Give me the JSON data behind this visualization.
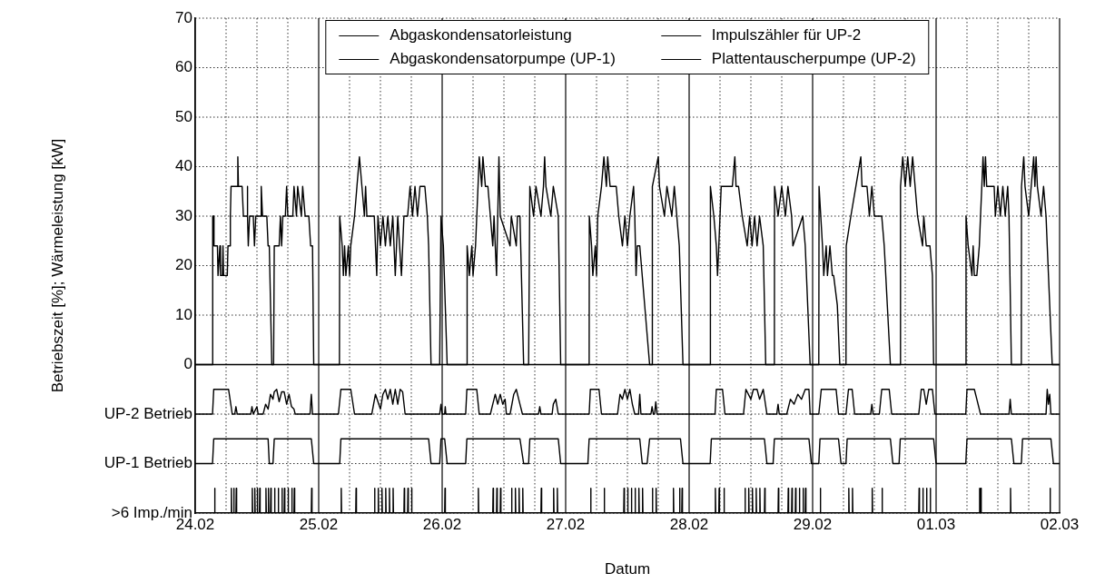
{
  "chart_data": {
    "type": "line",
    "xlabel": "Datum",
    "ylabel": "Betriebszeit [%]; Wärmeleistung [kW]",
    "xlim": [
      "--02-24",
      "--03-02"
    ],
    "xticks": [
      {
        "value": "--02-24",
        "label": "24.02"
      },
      {
        "value": "--02-24T06:00",
        "label": null
      },
      {
        "value": "--02-24T12:00",
        "label": null
      },
      {
        "value": "--02-24T18:00",
        "label": null
      },
      {
        "value": "--02-25",
        "label": "25.02"
      },
      {
        "value": "--02-25T06:00",
        "label": null
      },
      {
        "value": "--02-25T12:00",
        "label": null
      },
      {
        "value": "--02-25T18:00",
        "label": null
      },
      {
        "value": "--02-26",
        "label": "26.02"
      },
      {
        "value": "--02-26T06:00",
        "label": null
      },
      {
        "value": "--02-26T12:00",
        "label": null
      },
      {
        "value": "--02-26T18:00",
        "label": null
      },
      {
        "value": "--02-27",
        "label": "27.02"
      },
      {
        "value": "--02-27T06:00",
        "label": null
      },
      {
        "value": "--02-27T12:00",
        "label": null
      },
      {
        "value": "--02-27T18:00",
        "label": null
      },
      {
        "value": "--02-28",
        "label": "28.02"
      },
      {
        "value": "--02-28T06:00",
        "label": null
      },
      {
        "value": "--02-28T12:00",
        "label": null
      },
      {
        "value": "--02-28T18:00",
        "label": null
      },
      {
        "value": "--02-29",
        "label": "29.02"
      },
      {
        "value": "--02-29T06:00",
        "label": null
      },
      {
        "value": "--02-29T12:00",
        "label": null
      },
      {
        "value": "--02-29T18:00",
        "label": null
      },
      {
        "value": "--03-01",
        "label": "01.03"
      },
      {
        "value": "--03-01T06:00",
        "label": null
      },
      {
        "value": "--03-01T12:00",
        "label": null
      },
      {
        "value": "--03-01T18:00",
        "label": null
      },
      {
        "value": "--03-02",
        "label": "02.03"
      }
    ],
    "ylim": [
      -30,
      70
    ],
    "yticks": [
      {
        "value": -30,
        "label": ">6 Imp./min"
      },
      {
        "value": -20,
        "label": "UP-1 Betrieb"
      },
      {
        "value": -10,
        "label": "UP-2 Betrieb"
      },
      0,
      10,
      20,
      30,
      40,
      50,
      60,
      70
    ],
    "grid": true,
    "legend": "top",
    "marker": "none",
    "line_style": "solid",
    "series": [
      {
        "name": "Abgaskondensatorleistung",
        "color": "#000000",
        "x": [
          "--02-24T00:00",
          "--02-24T03:22",
          "--02-24T03:24",
          "--02-24T03:36",
          "--02-24T03:39",
          "--02-24T04:19",
          "--02-24T04:26",
          "--02-24T04:48",
          "--02-24T04:55",
          "--02-24T05:17",
          "--02-24T05:24",
          "--02-24T05:31",
          "--02-24T06:14",
          "--02-24T06:22",
          "--02-24T06:43",
          "--02-24T06:50",
          "--02-24T06:58",
          "--02-24T08:10",
          "--02-24T08:17",
          "--02-24T08:24",
          "--02-24T09:07",
          "--02-24T09:22",
          "--02-24T10:05",
          "--02-24T10:08",
          "--02-24T10:12",
          "--02-24T10:19",
          "--02-24T10:34",
          "--02-24T11:17",
          "--02-24T11:31",
          "--02-24T11:46",
          "--02-24T12:43",
          "--02-24T12:50",
          "--02-24T13:05",
          "--02-24T13:55",
          "--02-24T14:10",
          "--02-24T14:24",
          "--02-24T14:53",
          "--02-24T15:14",
          "--02-24T15:22",
          "--02-24T16:19",
          "--02-24T16:34",
          "--02-24T16:48",
          "--02-24T17:02",
          "--02-24T17:31",
          "--02-24T17:46",
          "--02-24T18:00",
          "--02-24T18:58",
          "--02-24T19:12",
          "--02-24T19:41",
          "--02-24T19:55",
          "--02-24T20:38",
          "--02-24T20:53",
          "--02-24T21:22",
          "--02-24T22:05",
          "--02-24T22:26",
          "--02-24T22:48",
          "--02-24T23:02",
          "--02-25T04:02",
          "--02-25T04:05",
          "--02-25T04:34",
          "--02-25T04:48",
          "--02-25T05:02",
          "--02-25T05:17",
          "--02-25T05:46",
          "--02-25T06:00",
          "--02-25T06:14",
          "--02-25T06:58",
          "--02-25T07:26",
          "--02-25T07:55",
          "--02-25T08:24",
          "--02-25T08:53",
          "--02-25T09:07",
          "--02-25T09:22",
          "--02-25T10:48",
          "--02-25T11:02",
          "--02-25T11:17",
          "--02-25T11:31",
          "--02-25T12:00",
          "--02-25T12:29",
          "--02-25T12:58",
          "--02-25T13:26",
          "--02-25T13:55",
          "--02-25T14:24",
          "--02-25T14:53",
          "--02-25T15:22",
          "--02-25T16:05",
          "--02-25T16:34",
          "--02-25T17:17",
          "--02-25T17:46",
          "--02-25T18:14",
          "--02-25T18:43",
          "--02-25T19:12",
          "--02-25T19:41",
          "--02-25T20:38",
          "--02-25T21:07",
          "--02-25T21:22",
          "--02-25T21:50",
          "--02-25T23:31",
          "--02-25T23:46",
          "--02-26T00:14",
          "--02-26T00:58",
          "--02-26T04:48",
          "--02-26T04:51",
          "--02-26T05:17",
          "--02-26T05:46",
          "--02-26T06:00",
          "--02-26T06:29",
          "--02-26T06:58",
          "--02-26T07:12",
          "--02-26T07:41",
          "--02-26T07:55",
          "--02-26T08:24",
          "--02-26T08:53",
          "--02-26T09:22",
          "--02-26T09:50",
          "--02-26T10:05",
          "--02-26T10:19",
          "--02-26T10:34",
          "--02-26T10:48",
          "--02-26T11:02",
          "--02-26T11:17",
          "--02-26T13:12",
          "--02-26T13:26",
          "--02-26T14:24",
          "--02-26T14:38",
          "--02-26T15:07",
          "--02-26T15:50",
          "--02-26T16:48",
          "--02-26T17:02",
          "--02-26T17:46",
          "--02-26T18:14",
          "--02-26T19:12",
          "--02-26T19:41",
          "--02-26T19:55",
          "--02-26T20:10",
          "--02-26T21:07",
          "--02-26T21:36",
          "--02-26T22:34",
          "--02-26T23:02",
          "--02-27T04:34",
          "--02-27T04:36",
          "--02-27T05:02",
          "--02-27T05:17",
          "--02-27T05:46",
          "--02-27T06:00",
          "--02-27T06:14",
          "--02-27T06:58",
          "--02-27T07:26",
          "--02-27T07:55",
          "--02-27T08:10",
          "--02-27T08:38",
          "--02-27T09:50",
          "--02-27T10:19",
          "--02-27T11:02",
          "--02-27T11:31",
          "--02-27T12:00",
          "--02-27T12:29",
          "--02-27T13:12",
          "--02-27T13:26",
          "--02-27T13:41",
          "--02-27T13:55",
          "--02-27T14:24",
          "--02-27T16:19",
          "--02-27T16:48",
          "--02-27T16:51",
          "--02-27T18:00",
          "--02-27T18:14",
          "--02-27T19:12",
          "--02-27T19:41",
          "--02-27T20:38",
          "--02-27T21:07",
          "--02-27T21:36",
          "--02-27T22:05",
          "--02-27T22:48",
          "--02-28T04:05",
          "--02-28T04:08",
          "--02-28T04:48",
          "--02-28T05:17",
          "--02-28T05:31",
          "--02-28T05:46",
          "--02-28T06:00",
          "--02-28T06:14",
          "--02-28T08:24",
          "--02-28T08:53",
          "--02-28T09:07",
          "--02-28T09:36",
          "--02-28T10:19",
          "--02-28T11:17",
          "--02-28T11:46",
          "--02-28T12:14",
          "--02-28T12:43",
          "--02-28T13:12",
          "--02-28T13:41",
          "--02-28T14:24",
          "--02-28T14:53",
          "--02-28T16:34",
          "--02-28T16:36",
          "--02-28T17:17",
          "--02-28T18:00",
          "--02-28T18:43",
          "--02-28T19:12",
          "--02-28T19:55",
          "--02-28T20:10",
          "--02-28T22:05",
          "--02-28T22:34",
          "--02-28T23:31",
          "--02-29T01:12",
          "--02-29T01:15",
          "--02-29T01:55",
          "--02-29T02:10",
          "--02-29T02:38",
          "--02-29T02:53",
          "--02-29T03:22",
          "--02-29T03:50",
          "--02-29T04:05",
          "--02-29T04:48",
          "--02-29T05:17",
          "--02-29T06:29",
          "--02-29T06:32",
          "--02-29T07:26",
          "--02-29T08:24",
          "--02-29T09:22",
          "--02-29T09:36",
          "--02-29T10:34",
          "--02-29T11:02",
          "--02-29T11:31",
          "--02-29T12:00",
          "--02-29T12:43",
          "--02-29T13:26",
          "--02-29T13:55",
          "--02-29T15:07",
          "--02-29T17:02",
          "--02-29T17:05",
          "--02-29T17:31",
          "--02-29T18:00",
          "--02-29T18:29",
          "--02-29T18:58",
          "--02-29T19:26",
          "--02-29T19:55",
          "--02-29T20:24",
          "--02-29T21:22",
          "--02-29T21:36",
          "--02-29T22:05",
          "--02-29T22:48",
          "--02-29T23:17",
          "--02-29T23:31",
          "--03-01T05:46",
          "--03-01T05:49",
          "--03-01T06:14",
          "--03-01T06:58",
          "--03-01T07:12",
          "--03-01T07:26",
          "--03-01T07:55",
          "--03-01T08:24",
          "--03-01T08:38",
          "--03-01T08:53",
          "--03-01T09:07",
          "--03-01T09:22",
          "--03-01T09:36",
          "--03-01T09:50",
          "--03-01T11:17",
          "--03-01T11:31",
          "--03-01T12:00",
          "--03-01T12:29",
          "--03-01T12:58",
          "--03-01T13:26",
          "--03-01T13:55",
          "--03-01T14:10",
          "--03-01T14:38",
          "--03-01T16:34",
          "--03-01T16:36",
          "--03-01T17:02",
          "--03-01T17:17",
          "--03-01T18:00",
          "--03-01T18:29",
          "--03-01T18:58",
          "--03-01T19:12",
          "--03-01T19:26",
          "--03-01T19:41",
          "--03-01T20:24",
          "--03-01T20:53",
          "--03-01T21:22",
          "--03-01T21:36",
          "--03-01T22:34",
          "--03-02T00:00"
        ],
        "values": [
          0,
          0,
          30,
          30,
          24,
          24,
          18,
          24,
          18,
          18,
          24,
          18,
          18,
          24,
          24,
          30,
          36,
          36,
          42,
          36,
          36,
          30,
          30,
          36,
          30,
          24,
          30,
          30,
          24,
          30,
          30,
          36,
          30,
          30,
          24,
          24,
          0,
          0,
          24,
          24,
          30,
          24,
          30,
          30,
          36,
          30,
          30,
          36,
          30,
          36,
          30,
          36,
          30,
          30,
          24,
          24,
          0,
          0,
          30,
          24,
          18,
          24,
          18,
          24,
          18,
          24,
          30,
          36,
          42,
          36,
          30,
          36,
          30,
          30,
          24,
          18,
          30,
          24,
          30,
          24,
          30,
          24,
          30,
          18,
          30,
          18,
          30,
          30,
          36,
          30,
          36,
          30,
          36,
          36,
          30,
          24,
          0,
          0,
          30,
          24,
          0,
          0,
          24,
          18,
          24,
          18,
          24,
          36,
          42,
          36,
          42,
          36,
          36,
          30,
          24,
          30,
          24,
          18,
          30,
          42,
          30,
          24,
          30,
          24,
          30,
          30,
          0,
          0,
          36,
          30,
          36,
          30,
          36,
          42,
          36,
          30,
          36,
          30,
          0,
          0,
          30,
          24,
          18,
          24,
          18,
          30,
          36,
          42,
          36,
          42,
          36,
          36,
          30,
          24,
          30,
          24,
          30,
          36,
          30,
          18,
          24,
          24,
          0,
          0,
          36,
          42,
          36,
          30,
          36,
          30,
          36,
          30,
          24,
          0,
          0,
          36,
          30,
          24,
          18,
          24,
          30,
          36,
          36,
          42,
          36,
          36,
          30,
          24,
          30,
          24,
          30,
          24,
          30,
          24,
          0,
          0,
          36,
          30,
          36,
          30,
          36,
          30,
          24,
          30,
          24,
          0,
          0,
          36,
          24,
          18,
          24,
          18,
          24,
          18,
          18,
          12,
          0,
          0,
          24,
          30,
          36,
          42,
          36,
          36,
          30,
          36,
          30,
          30,
          30,
          24,
          0,
          0,
          36,
          42,
          36,
          42,
          36,
          42,
          36,
          30,
          24,
          30,
          24,
          24,
          18,
          0,
          0,
          30,
          24,
          18,
          24,
          18,
          18,
          24,
          30,
          36,
          42,
          36,
          42,
          36,
          36,
          30,
          36,
          30,
          36,
          30,
          36,
          30,
          0,
          0,
          36,
          42,
          36,
          30,
          36,
          42,
          36,
          42,
          36,
          30,
          36,
          30,
          24,
          0,
          0
        ]
      },
      {
        "name": "Impulszähler für UP-2",
        "color": "#000000",
        "x": [
          "--02-24T00:00",
          "--02-24T03:43",
          "--02-24T03:47",
          "--02-24T03:51",
          "--02-24T06:58",
          "--02-24T07:02",
          "--02-24T07:06",
          "--02-24T07:26",
          "--02-24T07:30",
          "--02-24T07:34",
          "--02-24T07:55",
          "--02-24T07:59",
          "--02-24T08:03",
          "--02-24T11:02",
          "--02-24T11:06",
          "--02-24T11:10",
          "--02-24T11:31",
          "--02-24T11:35",
          "--02-24T11:39",
          "--02-24T12:00",
          "--02-24T12:04",
          "--02-24T12:08",
          "--02-24T12:29",
          "--02-24T12:33",
          "--02-24T12:37",
          "--02-24T13:41",
          "--02-24T13:45",
          "--02-24T13:49",
          "--02-24T14:10",
          "--02-24T14:14",
          "--02-24T14:18",
          "--02-24T14:38",
          "--02-24T14:42",
          "--02-24T14:46",
          "--02-24T15:22",
          "--02-24T15:26",
          "--02-24T15:30",
          "--02-24T16:05",
          "--02-24T16:09",
          "--02-24T16:13",
          "--02-24T16:48",
          "--02-24T16:52",
          "--02-24T16:56",
          "--02-24T17:17",
          "--02-24T17:21",
          "--02-24T17:25",
          "--02-24T18:00",
          "--02-24T18:04",
          "--02-24T18:08",
          "--02-24T18:43",
          "--02-24T18:47",
          "--02-24T18:51",
          "--02-24T19:12",
          "--02-24T19:16",
          "--02-24T19:20",
          "--02-24T22:34",
          "--02-24T22:38",
          "--02-24T22:42",
          "--02-25T04:19",
          "--02-25T04:23",
          "--02-25T04:27",
          "--02-25T07:12",
          "--02-25T07:16",
          "--02-25T07:20",
          "--02-25T10:48",
          "--02-25T10:52",
          "--02-25T10:56",
          "--02-25T11:31",
          "--02-25T11:35",
          "--02-25T11:39",
          "--02-25T12:14",
          "--02-25T12:18",
          "--02-25T12:22",
          "--02-25T12:58",
          "--02-25T13:02",
          "--02-25T13:06",
          "--02-25T13:41",
          "--02-25T13:45",
          "--02-25T13:49",
          "--02-25T14:24",
          "--02-25T14:28",
          "--02-25T14:32",
          "--02-25T16:34",
          "--02-25T16:38",
          "--02-25T16:42",
          "--02-25T17:17",
          "--02-25T17:21",
          "--02-25T17:25",
          "--02-25T18:00",
          "--02-25T18:04",
          "--02-25T18:08",
          "--02-26T00:29",
          "--02-26T00:33",
          "--02-26T00:37",
          "--02-26T06:58",
          "--02-26T07:02",
          "--02-26T07:06",
          "--02-26T09:50",
          "--02-26T09:54",
          "--02-26T09:58",
          "--02-26T10:34",
          "--02-26T10:38",
          "--02-26T10:42",
          "--02-26T11:17",
          "--02-26T11:21",
          "--02-26T11:25",
          "--02-26T13:26",
          "--02-26T13:30",
          "--02-26T13:34",
          "--02-26T14:10",
          "--02-26T14:14",
          "--02-26T14:18",
          "--02-26T14:53",
          "--02-26T14:57",
          "--02-26T15:01",
          "--02-26T15:36",
          "--02-26T15:40",
          "--02-26T15:44",
          "--02-26T19:12",
          "--02-26T19:16",
          "--02-26T19:20",
          "--02-26T21:36",
          "--02-26T21:40",
          "--02-26T21:44",
          "--02-26T22:19",
          "--02-26T22:23",
          "--02-26T22:27",
          "--02-27T04:48",
          "--02-27T04:52",
          "--02-27T04:56",
          "--02-27T07:26",
          "--02-27T07:30",
          "--02-27T07:34",
          "--02-27T11:17",
          "--02-27T11:21",
          "--02-27T11:25",
          "--02-27T12:00",
          "--02-27T12:04",
          "--02-27T12:08",
          "--02-27T12:43",
          "--02-27T12:47",
          "--02-27T12:51",
          "--02-27T13:26",
          "--02-27T13:30",
          "--02-27T13:34",
          "--02-27T14:10",
          "--02-27T14:14",
          "--02-27T14:18",
          "--02-27T14:53",
          "--02-27T14:57",
          "--02-27T15:01",
          "--02-27T16:48",
          "--02-27T16:52",
          "--02-27T16:56",
          "--02-27T17:31",
          "--02-27T17:35",
          "--02-27T17:39",
          "--02-27T20:53",
          "--02-27T20:57",
          "--02-27T21:01",
          "--02-27T22:05",
          "--02-27T22:09",
          "--02-27T22:13",
          "--02-27T22:34",
          "--02-27T22:38",
          "--02-27T22:42",
          "--02-28T05:02",
          "--02-28T05:06",
          "--02-28T05:10",
          "--02-28T05:46",
          "--02-28T05:50",
          "--02-28T05:54",
          "--02-28T06:43",
          "--02-28T06:47",
          "--02-28T06:51",
          "--02-28T10:48",
          "--02-28T10:52",
          "--02-28T10:56",
          "--02-28T11:31",
          "--02-28T11:35",
          "--02-28T11:39",
          "--02-28T12:14",
          "--02-28T12:18",
          "--02-28T12:22",
          "--02-28T12:58",
          "--02-28T13:02",
          "--02-28T13:06",
          "--02-28T13:41",
          "--02-28T13:45",
          "--02-28T13:49",
          "--02-28T14:38",
          "--02-28T14:42",
          "--02-28T14:46",
          "--02-28T17:17",
          "--02-28T17:21",
          "--02-28T17:25",
          "--02-28T19:12",
          "--02-28T19:16",
          "--02-28T19:20",
          "--02-28T19:55",
          "--02-28T19:59",
          "--02-28T20:03",
          "--02-28T20:38",
          "--02-28T20:42",
          "--02-28T20:46",
          "--02-28T21:22",
          "--02-28T21:26",
          "--02-28T21:30",
          "--02-28T22:05",
          "--02-28T22:09",
          "--02-28T22:13",
          "--02-28T22:34",
          "--02-28T22:38",
          "--02-28T22:42",
          "--02-29T01:26",
          "--02-29T01:30",
          "--02-29T01:34",
          "--02-29T06:58",
          "--02-29T07:02",
          "--02-29T07:06",
          "--02-29T07:41",
          "--02-29T07:45",
          "--02-29T07:49",
          "--02-29T11:31",
          "--02-29T11:35",
          "--02-29T11:39",
          "--02-29T13:26",
          "--02-29T13:30",
          "--02-29T13:34",
          "--02-29T20:38",
          "--02-29T20:42",
          "--02-29T20:46",
          "--02-29T21:22",
          "--02-29T21:26",
          "--02-29T21:30",
          "--02-29T22:05",
          "--02-29T22:09",
          "--02-29T22:13",
          "--02-29T22:48",
          "--02-29T22:52",
          "--02-29T22:56",
          "--03-01T08:24",
          "--03-01T08:28",
          "--03-01T08:32",
          "--03-01T08:38",
          "--03-01T08:42",
          "--03-01T08:46",
          "--03-01T14:24",
          "--03-01T14:28",
          "--03-01T14:32",
          "--03-01T22:05",
          "--03-01T22:09",
          "--03-01T22:13",
          "--03-02T00:00"
        ],
        "values": [
          -30,
          -30,
          -25,
          -30,
          -30,
          -25,
          -30,
          -30,
          -25,
          -30,
          -30,
          -25,
          -30,
          -30,
          -25,
          -30,
          -30,
          -25,
          -30,
          -30,
          -25,
          -30,
          -30,
          -25,
          -30,
          -30,
          -25,
          -30,
          -30,
          -25,
          -30,
          -30,
          -25,
          -30,
          -30,
          -25,
          -30,
          -30,
          -25,
          -30,
          -30,
          -25,
          -30,
          -30,
          -25,
          -30,
          -30,
          -25,
          -30,
          -30,
          -25,
          -30,
          -30,
          -25,
          -30,
          -30,
          -25,
          -30,
          -30,
          -25,
          -30,
          -30,
          -25,
          -30,
          -30,
          -25,
          -30,
          -30,
          -25,
          -30,
          -30,
          -25,
          -30,
          -30,
          -25,
          -30,
          -30,
          -25,
          -30,
          -30,
          -25,
          -30,
          -30,
          -25,
          -30,
          -30,
          -25,
          -30,
          -30,
          -25,
          -30,
          -30,
          -25,
          -30,
          -30,
          -25,
          -30,
          -30,
          -25,
          -30,
          -30,
          -25,
          -30,
          -30,
          -25,
          -30,
          -30,
          -25,
          -30,
          -30,
          -25,
          -30,
          -30,
          -25,
          -30,
          -30,
          -25,
          -30,
          -30,
          -25,
          -30,
          -30,
          -25,
          -30,
          -30,
          -25,
          -30,
          -30,
          -25,
          -30,
          -30,
          -25,
          -30,
          -30,
          -25,
          -30,
          -30,
          -25,
          -30,
          -30,
          -25,
          -30,
          -30,
          -25,
          -30,
          -30,
          -25,
          -30,
          -30,
          -25,
          -30,
          -30,
          -25,
          -30,
          -30,
          -25,
          -30,
          -30,
          -25,
          -30,
          -30,
          -25,
          -30,
          -30,
          -25,
          -30,
          -30,
          -25,
          -30,
          -30,
          -25,
          -30,
          -30,
          -25,
          -30,
          -30,
          -25,
          -30,
          -30,
          -25,
          -30,
          -30,
          -25,
          -30,
          -30,
          -25,
          -30,
          -30,
          -25,
          -30,
          -30,
          -25,
          -30,
          -30,
          -25,
          -30,
          -30,
          -25,
          -30,
          -30,
          -25,
          -30,
          -30,
          -25,
          -30,
          -30,
          -25,
          -30,
          -30,
          -25,
          -30,
          -30,
          -25,
          -30,
          -30,
          -25,
          -30,
          -30,
          -25,
          -30,
          -30,
          -25,
          -30,
          -30,
          -25,
          -30,
          -30,
          -25,
          -30,
          -30,
          -25,
          -30,
          -30,
          -25,
          -30,
          -30,
          -25,
          -30,
          -30,
          -25,
          -30,
          -30,
          -25,
          -30,
          -30,
          -25,
          -30,
          -30,
          -25,
          -30,
          -30,
          -25,
          -30,
          -30
        ]
      },
      {
        "name": "Abgaskondensatorpumpe (UP-1)",
        "color": "#000000",
        "x": [
          "--02-24T00:00",
          "--02-24T03:22",
          "--02-24T03:36",
          "--02-24T14:10",
          "--02-24T14:24",
          "--02-24T15:07",
          "--02-24T15:22",
          "--02-24T22:34",
          "--02-24T23:02",
          "--02-25T04:05",
          "--02-25T04:19",
          "--02-25T21:22",
          "--02-25T21:50",
          "--02-25T23:31",
          "--02-25T23:46",
          "--02-26T00:29",
          "--02-26T00:58",
          "--02-26T04:34",
          "--02-26T04:48",
          "--02-26T15:07",
          "--02-26T15:50",
          "--02-26T16:48",
          "--02-26T17:02",
          "--02-26T22:34",
          "--02-26T23:02",
          "--02-27T04:19",
          "--02-27T04:34",
          "--02-27T14:24",
          "--02-27T14:53",
          "--02-27T15:50",
          "--02-27T16:19",
          "--02-27T22:19",
          "--02-27T22:48",
          "--02-28T04:05",
          "--02-28T04:19",
          "--02-28T14:38",
          "--02-28T15:07",
          "--02-28T16:19",
          "--02-28T16:34",
          "--02-28T23:17",
          "--02-28T23:46",
          "--02-29T01:12",
          "--02-29T01:26",
          "--02-29T05:02",
          "--02-29T05:31",
          "--02-29T06:29",
          "--02-29T06:43",
          "--02-29T15:07",
          "--02-29T15:36",
          "--02-29T16:48",
          "--02-29T17:02",
          "--02-29T23:31",
          "--03-01T00:00",
          "--03-01T05:46",
          "--03-01T06:00",
          "--03-01T14:38",
          "--03-01T15:07",
          "--03-01T16:34",
          "--03-01T16:48",
          "--03-01T22:19",
          "--03-01T22:48",
          "--03-02T00:00"
        ],
        "values": [
          -20,
          -20,
          -15,
          -15,
          -20,
          -20,
          -15,
          -15,
          -20,
          -20,
          -15,
          -15,
          -20,
          -20,
          -15,
          -15,
          -20,
          -20,
          -15,
          -15,
          -20,
          -20,
          -15,
          -15,
          -20,
          -20,
          -15,
          -15,
          -20,
          -20,
          -15,
          -15,
          -20,
          -20,
          -15,
          -15,
          -20,
          -20,
          -15,
          -15,
          -20,
          -20,
          -15,
          -15,
          -20,
          -20,
          -15,
          -15,
          -20,
          -20,
          -15,
          -15,
          -20,
          -20,
          -15,
          -15,
          -20,
          -20,
          -15,
          -15,
          -20,
          -20
        ]
      },
      {
        "name": "Plattentauscherpumpe (UP-2)",
        "color": "#000000",
        "x": [
          "--02-24T00:00",
          "--02-24T03:22",
          "--02-24T03:36",
          "--02-24T06:29",
          "--02-24T07:12",
          "--02-24T07:41",
          "--02-24T07:55",
          "--02-24T08:10",
          "--02-24T10:48",
          "--02-24T11:02",
          "--02-24T11:17",
          "--02-24T12:00",
          "--02-24T12:14",
          "--02-24T13:12",
          "--02-24T13:41",
          "--02-24T14:10",
          "--02-24T14:38",
          "--02-24T15:07",
          "--02-24T15:22",
          "--02-24T15:50",
          "--02-24T16:19",
          "--02-24T16:48",
          "--02-24T17:17",
          "--02-24T17:46",
          "--02-24T18:14",
          "--02-24T18:43",
          "--02-24T19:12",
          "--02-24T19:26",
          "--02-24T22:19",
          "--02-24T22:34",
          "--02-24T22:48",
          "--02-25T03:50",
          "--02-25T04:19",
          "--02-25T06:14",
          "--02-25T06:58",
          "--02-25T10:19",
          "--02-25T11:02",
          "--02-25T12:00",
          "--02-25T12:29",
          "--02-25T12:58",
          "--02-25T13:26",
          "--02-25T13:55",
          "--02-25T14:24",
          "--02-25T14:53",
          "--02-25T15:22",
          "--02-25T15:50",
          "--02-25T16:19",
          "--02-25T16:48",
          "--02-25T23:31",
          "--02-25T23:46",
          "--02-26T00:00",
          "--02-26T00:29",
          "--02-26T00:36",
          "--02-26T00:43",
          "--02-26T04:34",
          "--02-26T04:48",
          "--02-26T06:43",
          "--02-26T07:12",
          "--02-26T09:22",
          "--02-26T09:50",
          "--02-26T10:19",
          "--02-26T10:48",
          "--02-26T11:17",
          "--02-26T11:46",
          "--02-26T12:14",
          "--02-26T12:29",
          "--02-26T13:12",
          "--02-26T13:55",
          "--02-26T14:24",
          "--02-26T15:07",
          "--02-26T15:36",
          "--02-26T18:43",
          "--02-26T18:58",
          "--02-26T19:12",
          "--02-26T21:22",
          "--02-26T21:36",
          "--02-26T22:05",
          "--02-26T22:34",
          "--02-27T04:34",
          "--02-27T04:48",
          "--02-27T06:29",
          "--02-27T06:58",
          "--02-27T10:05",
          "--02-27T10:34",
          "--02-27T11:02",
          "--02-27T11:31",
          "--02-27T12:00",
          "--02-27T12:29",
          "--02-27T12:58",
          "--02-27T13:26",
          "--02-27T14:10",
          "--02-27T14:24",
          "--02-27T14:38",
          "--02-27T16:34",
          "--02-27T16:48",
          "--02-27T17:02",
          "--02-27T17:17",
          "--02-27T17:31",
          "--02-27T17:46",
          "--02-28T05:02",
          "--02-28T05:17",
          "--02-28T06:29",
          "--02-28T06:58",
          "--02-28T10:34",
          "--02-28T11:02",
          "--02-28T12:00",
          "--02-28T12:29",
          "--02-28T13:12",
          "--02-28T13:41",
          "--02-28T14:24",
          "--02-28T15:07",
          "--02-28T17:02",
          "--02-28T17:17",
          "--02-28T17:31",
          "--02-28T18:58",
          "--02-28T19:41",
          "--02-28T20:24",
          "--02-28T21:07",
          "--02-28T21:50",
          "--02-28T22:34",
          "--02-28T23:17",
          "--02-28T23:31",
          "--02-29T01:12",
          "--02-29T01:41",
          "--02-29T04:34",
          "--02-29T05:02",
          "--02-29T06:29",
          "--02-29T06:58",
          "--02-29T07:41",
          "--02-29T08:10",
          "--02-29T11:17",
          "--02-29T11:31",
          "--02-29T11:46",
          "--02-29T12:58",
          "--02-29T13:26",
          "--02-29T14:53",
          "--02-29T15:22",
          "--02-29T20:38",
          "--02-29T21:07",
          "--02-29T21:36",
          "--02-29T22:05",
          "--02-29T22:34",
          "--02-29T23:17",
          "--02-29T23:46",
          "--03-01T05:46",
          "--03-01T06:00",
          "--03-01T07:26",
          "--03-01T07:55",
          "--03-01T08:38",
          "--03-01T14:10",
          "--03-01T14:24",
          "--03-01T14:38",
          "--03-01T21:22",
          "--03-01T21:36",
          "--03-01T21:50",
          "--03-01T22:05",
          "--03-01T22:19",
          "--03-02T00:00"
        ],
        "values": [
          -10,
          -10,
          -5,
          -5,
          -10,
          -10,
          -8.5,
          -10,
          -10,
          -8.5,
          -10,
          -8.5,
          -10,
          -10,
          -8,
          -9,
          -6,
          -7,
          -5.5,
          -5,
          -7.5,
          -5.5,
          -5.5,
          -8,
          -6,
          -8.5,
          -9,
          -10,
          -10,
          -6,
          -10,
          -10,
          -5,
          -5,
          -10,
          -10,
          -6,
          -9,
          -6,
          -5,
          -7,
          -5,
          -8,
          -5,
          -8,
          -5,
          -5.5,
          -10,
          -10,
          -8,
          -10,
          -10,
          -8.5,
          -10,
          -10,
          -5,
          -5,
          -10,
          -10,
          -8,
          -6,
          -8,
          -6,
          -8,
          -7,
          -10,
          -10,
          -6,
          -5,
          -8,
          -10,
          -10,
          -8.5,
          -10,
          -10,
          -8,
          -7,
          -10,
          -10,
          -5,
          -5,
          -10,
          -10,
          -6,
          -7,
          -5,
          -7,
          -5,
          -8,
          -10,
          -10,
          -6,
          -10,
          -10,
          -8.5,
          -10,
          -10,
          -7.5,
          -10,
          -10,
          -5,
          -5,
          -10,
          -10,
          -5,
          -7,
          -5,
          -5,
          -7,
          -5,
          -10,
          -10,
          -8,
          -10,
          -10,
          -7,
          -8,
          -6,
          -7,
          -5,
          -5,
          -10,
          -10,
          -5,
          -5,
          -10,
          -10,
          -5,
          -5,
          -10,
          -10,
          -8,
          -10,
          -10,
          -5,
          -5,
          -10,
          -10,
          -5,
          -5,
          -8,
          -5,
          -5,
          -10,
          -10,
          -5,
          -5,
          -7,
          -10,
          -10,
          -7,
          -10,
          -10,
          -5,
          -8,
          -6,
          -10,
          -10
        ]
      }
    ]
  }
}
